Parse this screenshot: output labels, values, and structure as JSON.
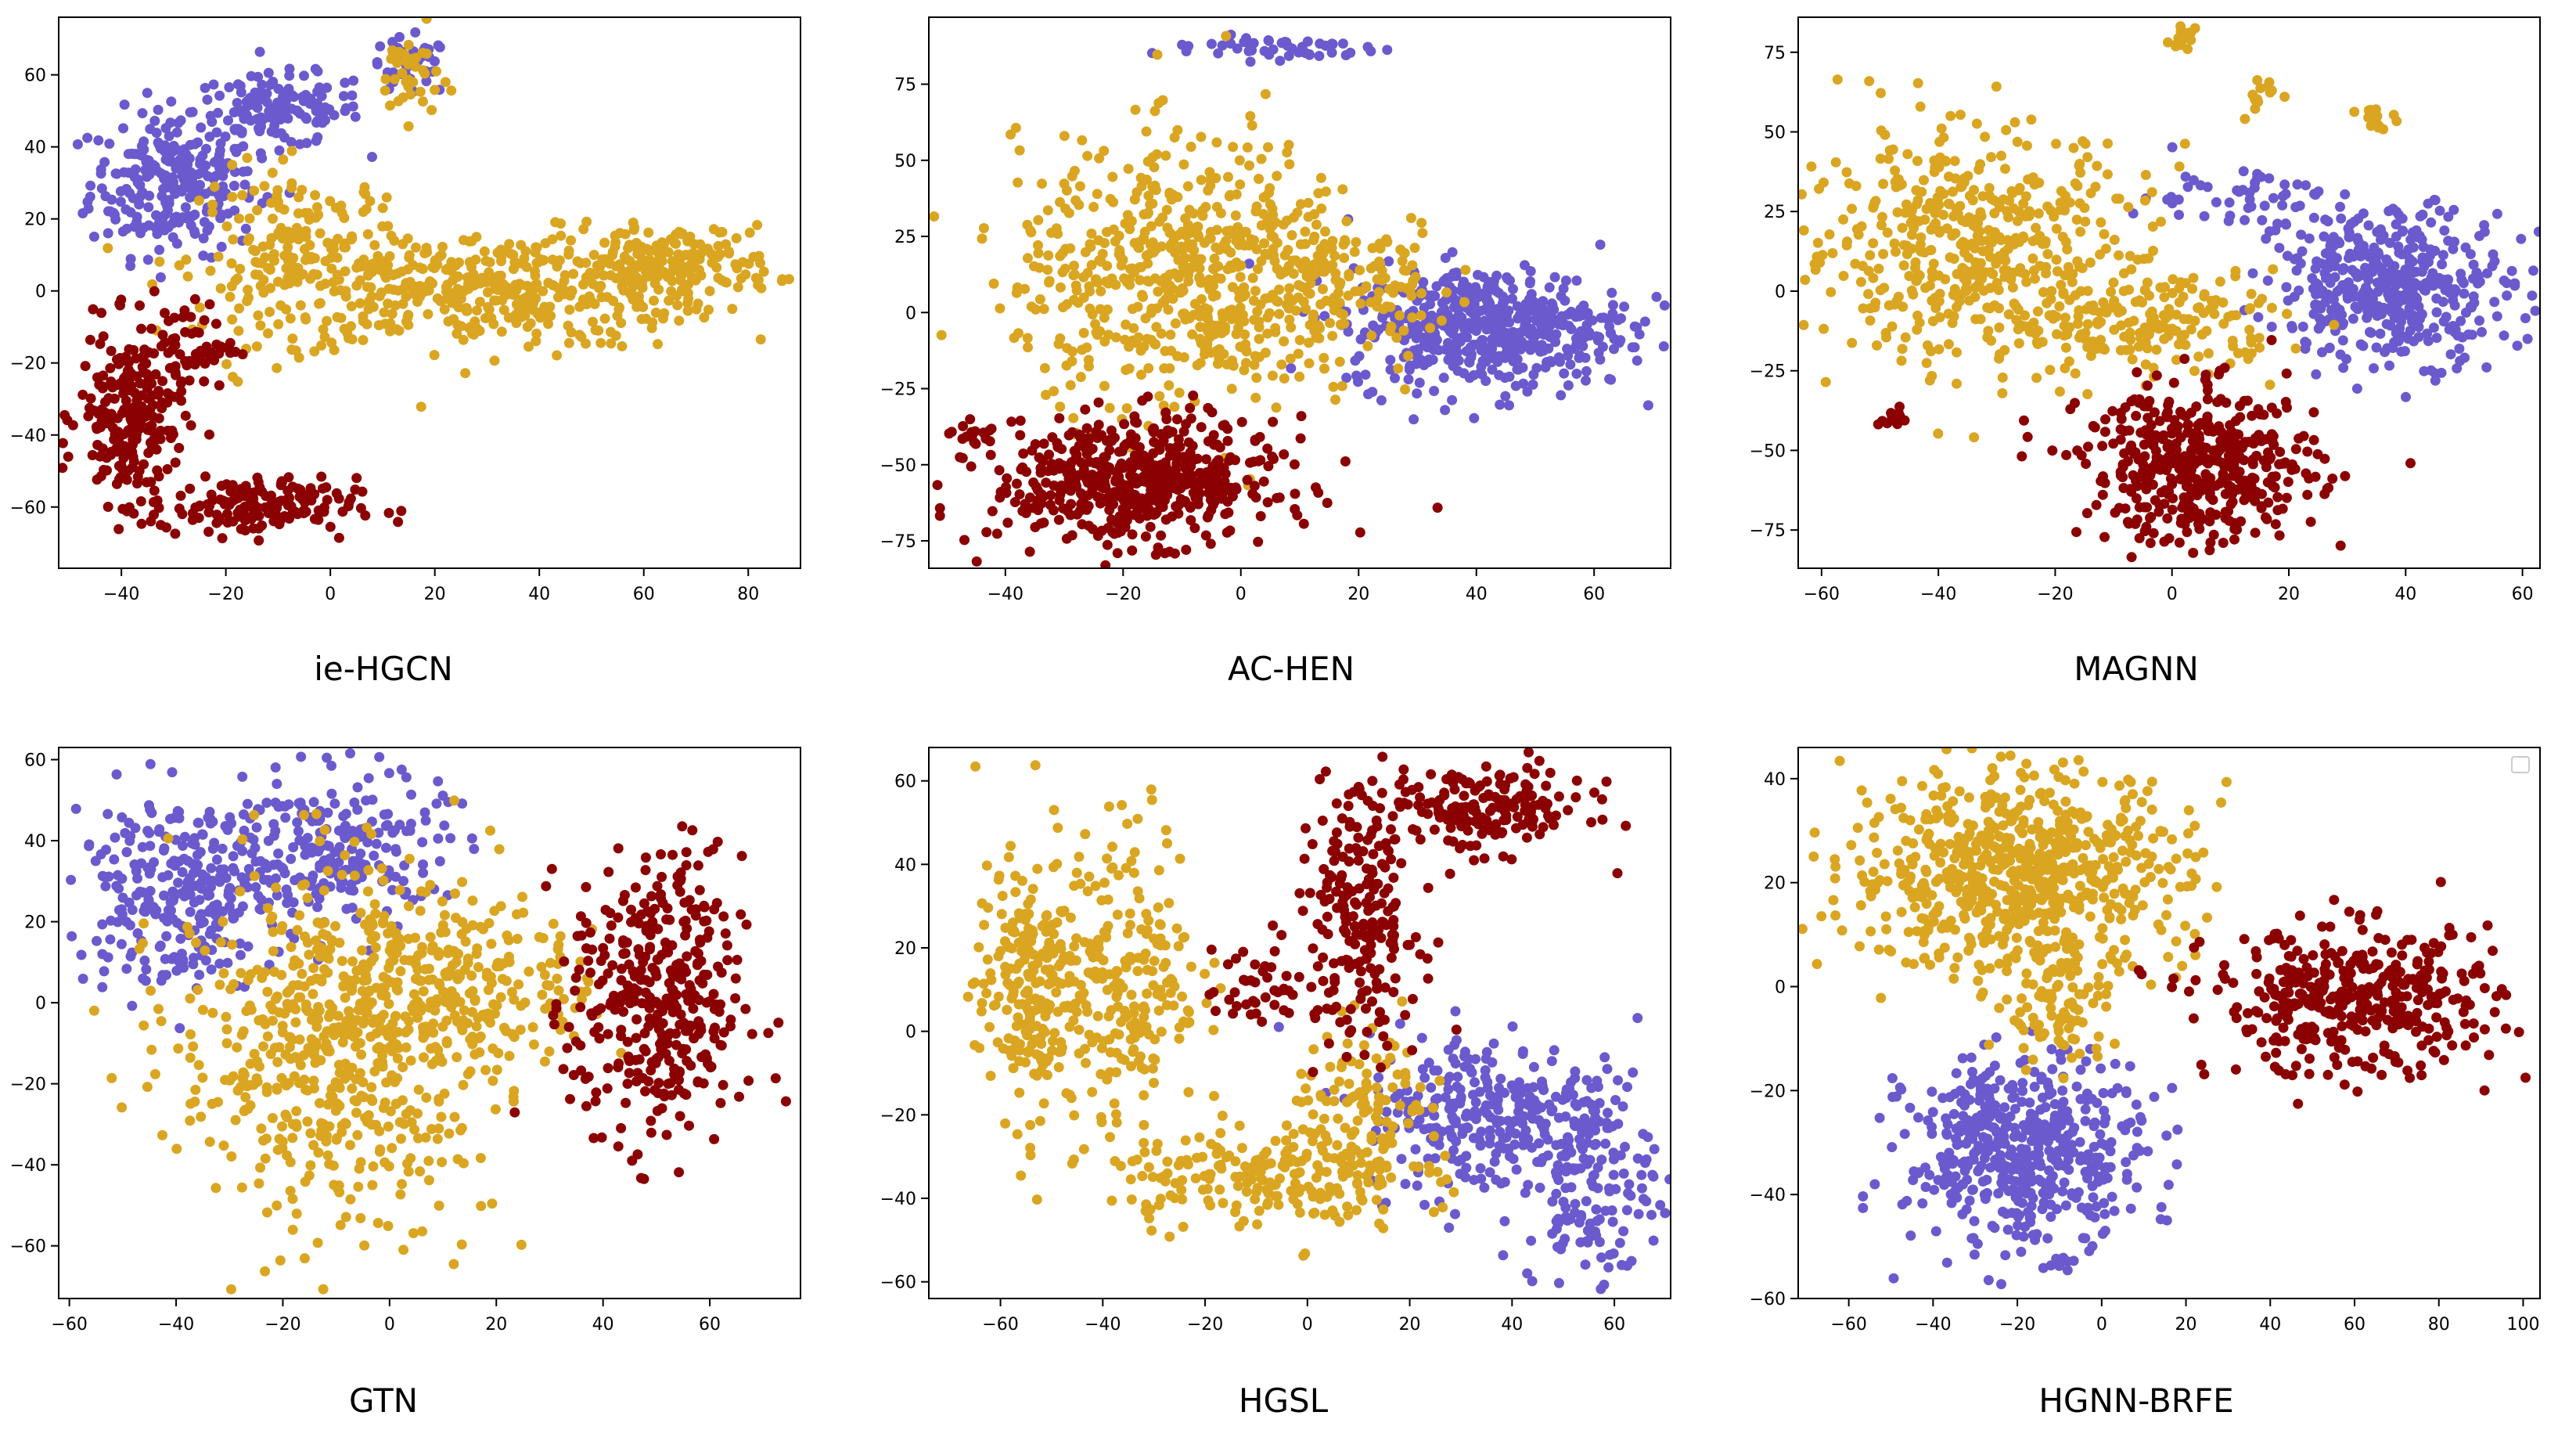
{
  "colors": {
    "class_a": "#6a5acd",
    "class_b": "#daa520",
    "class_c": "#8b0000",
    "axis": "#000000",
    "legend_border": "#cccccc"
  },
  "chart_data": [
    {
      "type": "scatter",
      "title": "ie-HGCN",
      "xlim": [
        -52,
        90
      ],
      "ylim": [
        -77,
        76
      ],
      "xticks": [
        -40,
        -20,
        0,
        20,
        40,
        60,
        80
      ],
      "yticks": [
        -60,
        -40,
        -20,
        0,
        20,
        40,
        60
      ],
      "grid": false,
      "series": [
        {
          "clusters": [
            {
              "cx": -30,
              "cy": 30,
              "sx": 8,
              "sy": 10,
              "n": 260
            },
            {
              "cx": -10,
              "cy": 50,
              "sx": 8,
              "sy": 5,
              "n": 140
            },
            {
              "cx": 15,
              "cy": 62,
              "sx": 4,
              "sy": 4,
              "n": 40
            }
          ]
        },
        {
          "clusters": [
            {
              "cx": 30,
              "cy": 0,
              "sx": 22,
              "sy": 8,
              "n": 420
            },
            {
              "cx": 65,
              "cy": 8,
              "sx": 10,
              "sy": 5,
              "n": 160
            },
            {
              "cx": -5,
              "cy": 10,
              "sx": 10,
              "sy": 12,
              "n": 180
            },
            {
              "cx": 15,
              "cy": 60,
              "sx": 3,
              "sy": 6,
              "n": 40
            }
          ]
        },
        {
          "clusters": [
            {
              "cx": -38,
              "cy": -35,
              "sx": 5,
              "sy": 12,
              "n": 220
            },
            {
              "cx": -15,
              "cy": -60,
              "sx": 10,
              "sy": 4,
              "n": 160
            },
            {
              "cx": -28,
              "cy": -15,
              "sx": 5,
              "sy": 6,
              "n": 60
            }
          ]
        }
      ]
    },
    {
      "type": "scatter",
      "title": "AC-HEN",
      "xlim": [
        -53,
        73
      ],
      "ylim": [
        -84,
        97
      ],
      "xticks": [
        -40,
        -20,
        0,
        20,
        40,
        60
      ],
      "yticks": [
        -75,
        -50,
        -25,
        0,
        25,
        50,
        75
      ],
      "grid": false,
      "series": [
        {
          "clusters": [
            {
              "cx": 42,
              "cy": -5,
              "sx": 12,
              "sy": 10,
              "n": 520
            },
            {
              "cx": 5,
              "cy": 87,
              "sx": 10,
              "sy": 2,
              "n": 50
            }
          ]
        },
        {
          "clusters": [
            {
              "cx": -8,
              "cy": 12,
              "sx": 15,
              "sy": 22,
              "n": 650
            },
            {
              "cx": 20,
              "cy": 10,
              "sx": 8,
              "sy": 10,
              "n": 90
            }
          ]
        },
        {
          "clusters": [
            {
              "cx": -18,
              "cy": -55,
              "sx": 12,
              "sy": 10,
              "n": 550
            },
            {
              "cx": -45,
              "cy": -40,
              "sx": 2,
              "sy": 2,
              "n": 15
            }
          ]
        }
      ]
    },
    {
      "type": "scatter",
      "title": "MAGNN",
      "xlim": [
        -64,
        63
      ],
      "ylim": [
        -87,
        86
      ],
      "xticks": [
        -60,
        -40,
        -20,
        0,
        20,
        40,
        60
      ],
      "yticks": [
        -75,
        -50,
        -25,
        0,
        25,
        50,
        75
      ],
      "grid": false,
      "series": [
        {
          "clusters": [
            {
              "cx": 38,
              "cy": 2,
              "sx": 10,
              "sy": 12,
              "n": 420
            },
            {
              "cx": 10,
              "cy": 30,
              "sx": 8,
              "sy": 5,
              "n": 50
            }
          ]
        },
        {
          "clusters": [
            {
              "cx": -35,
              "cy": 15,
              "sx": 15,
              "sy": 18,
              "n": 480
            },
            {
              "cx": -5,
              "cy": -10,
              "sx": 12,
              "sy": 8,
              "n": 200
            },
            {
              "cx": 2,
              "cy": 79,
              "sx": 1.2,
              "sy": 2,
              "n": 15
            },
            {
              "cx": 15,
              "cy": 60,
              "sx": 1.2,
              "sy": 3,
              "n": 15
            },
            {
              "cx": 35,
              "cy": 55,
              "sx": 1.5,
              "sy": 2,
              "n": 15
            }
          ]
        },
        {
          "clusters": [
            {
              "cx": 5,
              "cy": -55,
              "sx": 10,
              "sy": 12,
              "n": 450
            },
            {
              "cx": -48,
              "cy": -40,
              "sx": 1.5,
              "sy": 1.5,
              "n": 15
            }
          ]
        }
      ]
    },
    {
      "type": "scatter",
      "title": "GTN",
      "xlim": [
        -62,
        77
      ],
      "ylim": [
        -73,
        63
      ],
      "xticks": [
        -60,
        -40,
        -20,
        0,
        20,
        40,
        60
      ],
      "yticks": [
        -60,
        -40,
        -20,
        0,
        20,
        40,
        60
      ],
      "grid": false,
      "series": [
        {
          "clusters": [
            {
              "cx": -40,
              "cy": 28,
              "sx": 10,
              "sy": 12,
              "n": 280
            },
            {
              "cx": -10,
              "cy": 38,
              "sx": 10,
              "sy": 10,
              "n": 220
            }
          ]
        },
        {
          "clusters": [
            {
              "cx": -10,
              "cy": -10,
              "sx": 15,
              "sy": 22,
              "n": 600
            },
            {
              "cx": 15,
              "cy": 5,
              "sx": 12,
              "sy": 10,
              "n": 200
            }
          ]
        },
        {
          "clusters": [
            {
              "cx": 50,
              "cy": 0,
              "sx": 8,
              "sy": 18,
              "n": 380
            }
          ]
        }
      ]
    },
    {
      "type": "scatter",
      "title": "HGSL",
      "xlim": [
        -74,
        71
      ],
      "ylim": [
        -64,
        68
      ],
      "xticks": [
        -60,
        -40,
        -20,
        0,
        20,
        40,
        60
      ],
      "yticks": [
        -60,
        -40,
        -20,
        0,
        20,
        40,
        60
      ],
      "grid": false,
      "series": [
        {
          "clusters": [
            {
              "cx": 35,
              "cy": -20,
              "sx": 12,
              "sy": 10,
              "n": 280
            },
            {
              "cx": 55,
              "cy": -35,
              "sx": 6,
              "sy": 14,
              "n": 160
            }
          ]
        },
        {
          "clusters": [
            {
              "cx": -55,
              "cy": 10,
              "sx": 5,
              "sy": 15,
              "n": 220
            },
            {
              "cx": -35,
              "cy": 15,
              "sx": 7,
              "sy": 18,
              "n": 220
            },
            {
              "cx": -10,
              "cy": -35,
              "sx": 15,
              "sy": 6,
              "n": 200
            },
            {
              "cx": 12,
              "cy": -20,
              "sx": 8,
              "sy": 10,
              "n": 120
            }
          ]
        },
        {
          "clusters": [
            {
              "cx": 10,
              "cy": 28,
              "sx": 6,
              "sy": 16,
              "n": 220
            },
            {
              "cx": 35,
              "cy": 53,
              "sx": 10,
              "sy": 5,
              "n": 180
            },
            {
              "cx": -10,
              "cy": 10,
              "sx": 5,
              "sy": 5,
              "n": 40
            }
          ]
        }
      ]
    },
    {
      "type": "scatter",
      "title": "HGNN-BRFE",
      "xlim": [
        -72,
        104
      ],
      "ylim": [
        -60,
        46
      ],
      "xticks": [
        -60,
        -40,
        -20,
        0,
        20,
        40,
        60,
        80,
        100
      ],
      "yticks": [
        -60,
        -40,
        -20,
        0,
        20,
        40
      ],
      "grid": false,
      "legend": "top-right",
      "series": [
        {
          "clusters": [
            {
              "cx": -18,
              "cy": -32,
              "sx": 14,
              "sy": 9,
              "n": 500
            }
          ]
        },
        {
          "clusters": [
            {
              "cx": -20,
              "cy": 22,
              "sx": 20,
              "sy": 10,
              "n": 700
            },
            {
              "cx": -10,
              "cy": -5,
              "sx": 6,
              "sy": 6,
              "n": 80
            }
          ]
        },
        {
          "clusters": [
            {
              "cx": 60,
              "cy": -3,
              "sx": 17,
              "sy": 7,
              "n": 400
            }
          ]
        }
      ]
    }
  ]
}
